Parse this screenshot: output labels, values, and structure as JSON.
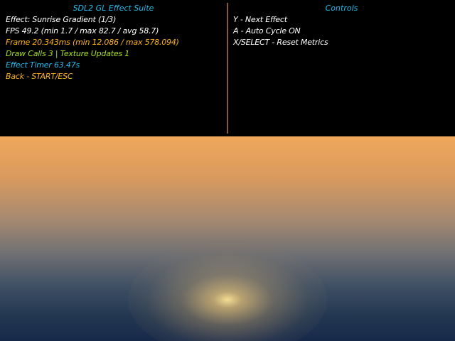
{
  "left_panel": {
    "title": "SDL2 GL Effect Suite",
    "lines": [
      "Effect: Sunrise Gradient (1/3)",
      "FPS 49.2 (min 1.7 / max 82.7 / avg 58.7)",
      "Frame 20.343ms (min 12.086 / max 578.094)",
      "Draw Calls 3 | Texture Updates 1",
      "Effect Timer 63.47s",
      "Back - START/ESC"
    ]
  },
  "right_panel": {
    "title": "Controls",
    "lines": [
      "Y - Next Effect",
      "A - Auto Cycle ON",
      "X/SELECT - Reset Metrics"
    ]
  },
  "colors": {
    "title": "#22bbee",
    "default_text": "#ffffff",
    "frame_text": "#ffb319",
    "draw_calls_text": "#a8e01e",
    "timer_text": "#22bbee",
    "back_text": "#ffb319",
    "divider": "#8a5a3a",
    "sky_top": "#f0a75a",
    "sky_bottom": "#17294a",
    "sun": "#ffe496"
  }
}
